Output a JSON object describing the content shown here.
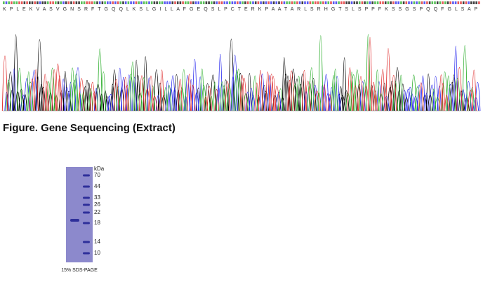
{
  "sequence": {
    "protein": "K P L E K V A S V G N S R F T G Q Q L K S L G I L L A F G E Q S L P C T E R K P A A T A R L S R H G T S L S P P F K S S G S P Q Q F G L S A P"
  },
  "caption": "Figure. Gene Sequencing (Extract)",
  "gel": {
    "unit": "kDa",
    "markers": [
      "70",
      "44",
      "33",
      "26",
      "22",
      "18",
      "14",
      "10"
    ],
    "caption": "15% SDS-PAGE"
  }
}
